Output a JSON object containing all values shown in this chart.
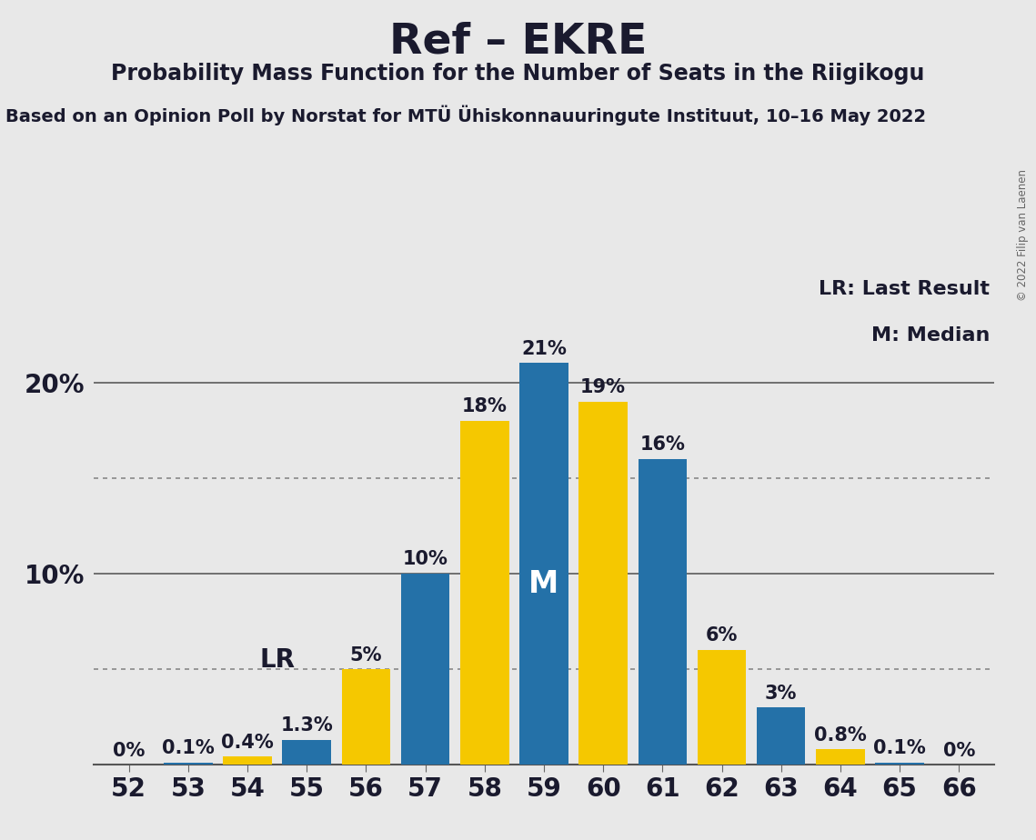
{
  "title": "Ref – EKRE",
  "subtitle": "Probability Mass Function for the Number of Seats in the Riigikogu",
  "source_line": "Based on an Opinion Poll by Norstat for MTÜ Ühiskonnauuringute Instituut, 10–16 May 2022",
  "copyright": "© 2022 Filip van Laenen",
  "seats": [
    52,
    53,
    54,
    55,
    56,
    57,
    58,
    59,
    60,
    61,
    62,
    63,
    64,
    65,
    66
  ],
  "probabilities": [
    0.0,
    0.1,
    0.4,
    1.3,
    5.0,
    10.0,
    18.0,
    21.0,
    19.0,
    16.0,
    6.0,
    3.0,
    0.8,
    0.1,
    0.0
  ],
  "bar_colors": [
    "#2471a8",
    "#2471a8",
    "#f5c800",
    "#2471a8",
    "#f5c800",
    "#2471a8",
    "#f5c800",
    "#2471a8",
    "#f5c800",
    "#2471a8",
    "#f5c800",
    "#2471a8",
    "#f5c800",
    "#2471a8",
    "#2471a8"
  ],
  "lr_seat": 55,
  "median_seat": 59,
  "bg_color": "#e8e8e8",
  "dotted_lines": [
    5.0,
    15.0
  ],
  "solid_lines": [
    10.0,
    20.0
  ],
  "legend_lr": "LR: Last Result",
  "legend_m": "M: Median",
  "title_fontsize": 34,
  "subtitle_fontsize": 17,
  "source_fontsize": 14,
  "bar_label_fontsize": 15,
  "axis_tick_fontsize": 20,
  "ytick_fontsize": 20,
  "legend_fontsize": 16,
  "lr_fontsize": 20,
  "m_fontsize": 24,
  "ylim_max": 25.5,
  "bar_width": 0.82
}
